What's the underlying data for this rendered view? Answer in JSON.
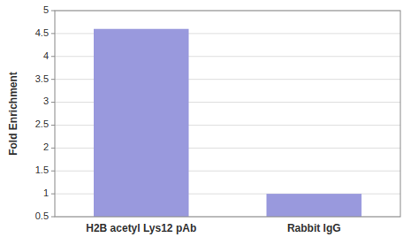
{
  "chart_data": {
    "type": "bar",
    "categories": [
      "H2B acetyl Lys12 pAb",
      "Rabbit IgG"
    ],
    "values": [
      4.6,
      1.0
    ],
    "color": "#9999dd",
    "ylabel": "Fold Enrichment",
    "ylim": [
      0.5,
      5.0
    ],
    "yticks": [
      0.5,
      1,
      1.5,
      2,
      2.5,
      3,
      3.5,
      4,
      4.5,
      5
    ],
    "grid": true
  }
}
